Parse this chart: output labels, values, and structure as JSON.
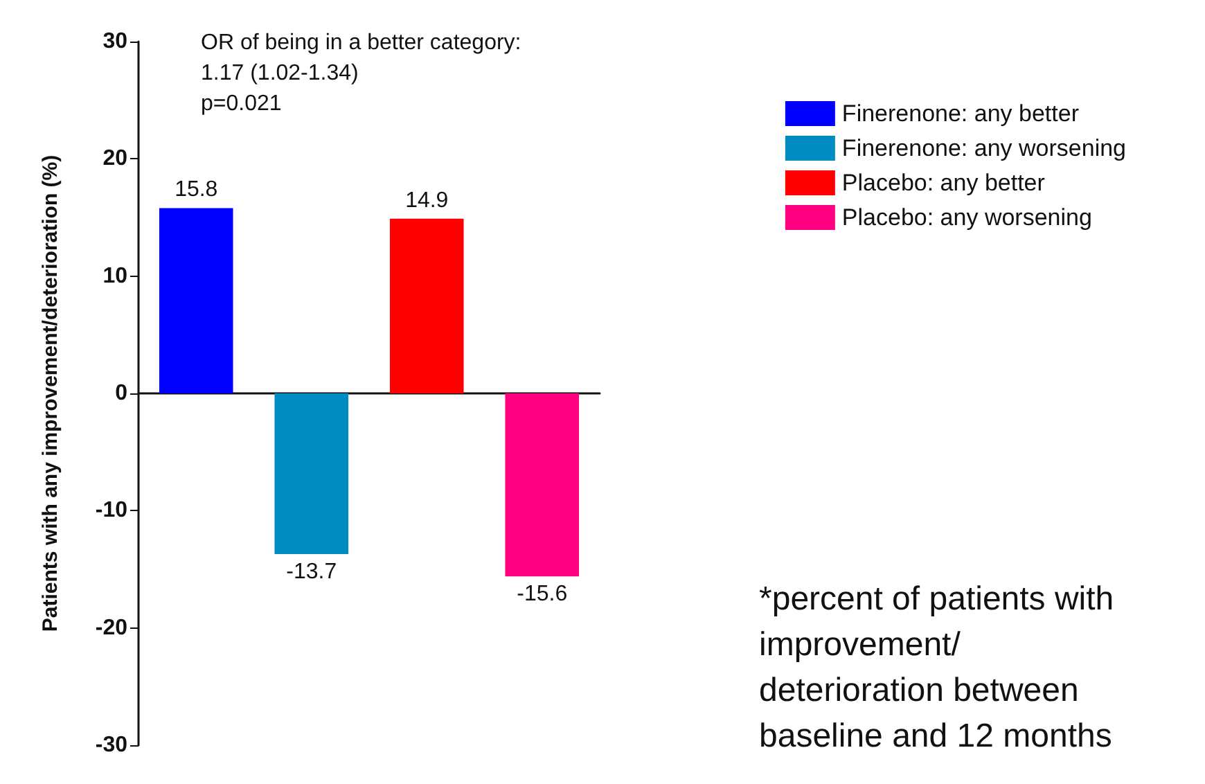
{
  "chart_data": {
    "type": "bar",
    "ylabel": "Patients with any improvement/deterioration (%)",
    "categories": [
      null,
      null,
      null,
      null
    ],
    "series": [
      {
        "name": "Finerenone: any better",
        "color": "#0000ff",
        "values": [
          15.8,
          null,
          null,
          null
        ]
      },
      {
        "name": "Finerenone: any worsening",
        "color": "#008cc0",
        "values": [
          null,
          -13.7,
          null,
          null
        ]
      },
      {
        "name": "Placebo: any better",
        "color": "#ff0000",
        "values": [
          null,
          null,
          14.9,
          null
        ]
      },
      {
        "name": "Placebo: any worsening",
        "color": "#ff0080",
        "values": [
          null,
          null,
          null,
          -15.6
        ]
      }
    ],
    "ylim": [
      -30,
      30
    ],
    "yticks": [
      -30,
      -20,
      -10,
      0,
      10,
      20,
      30
    ],
    "data_labels": true,
    "legend": "right",
    "annotations": [
      "OR of being in a better category:\n1.17 (1.02-1.34)\np=0.021",
      "*percent of patients with\nimprovement/\ndeterioration between\nbaseline and 12 months"
    ]
  }
}
